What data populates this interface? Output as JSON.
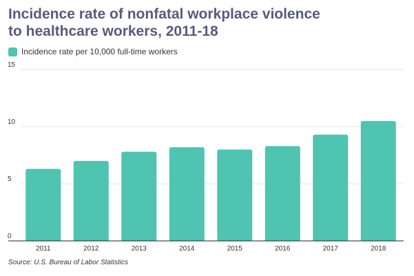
{
  "title_lines": [
    "Incidence rate of nonfatal workplace violence",
    "to healthcare workers, 2011-18"
  ],
  "source": "Source: U.S. Bureau of Labor Statistics",
  "colors": {
    "bar": "#4fc4b0",
    "title": "#565b7d",
    "grid": "#e6e6e6",
    "axis": "#222222",
    "text": "#333333"
  },
  "chart_data": {
    "type": "bar",
    "categories": [
      "2011",
      "2012",
      "2013",
      "2014",
      "2015",
      "2016",
      "2017",
      "2018"
    ],
    "series": [
      {
        "name": "Incidence rate per 10,000 full-time workers",
        "values": [
          6.3,
          7.0,
          7.8,
          8.2,
          8.0,
          8.3,
          9.3,
          10.5
        ]
      }
    ],
    "ylim": [
      0,
      15
    ],
    "yticks": [
      0,
      5,
      10,
      15
    ],
    "grid": true,
    "legend_position": "top-left",
    "xlabel": "",
    "ylabel": ""
  }
}
